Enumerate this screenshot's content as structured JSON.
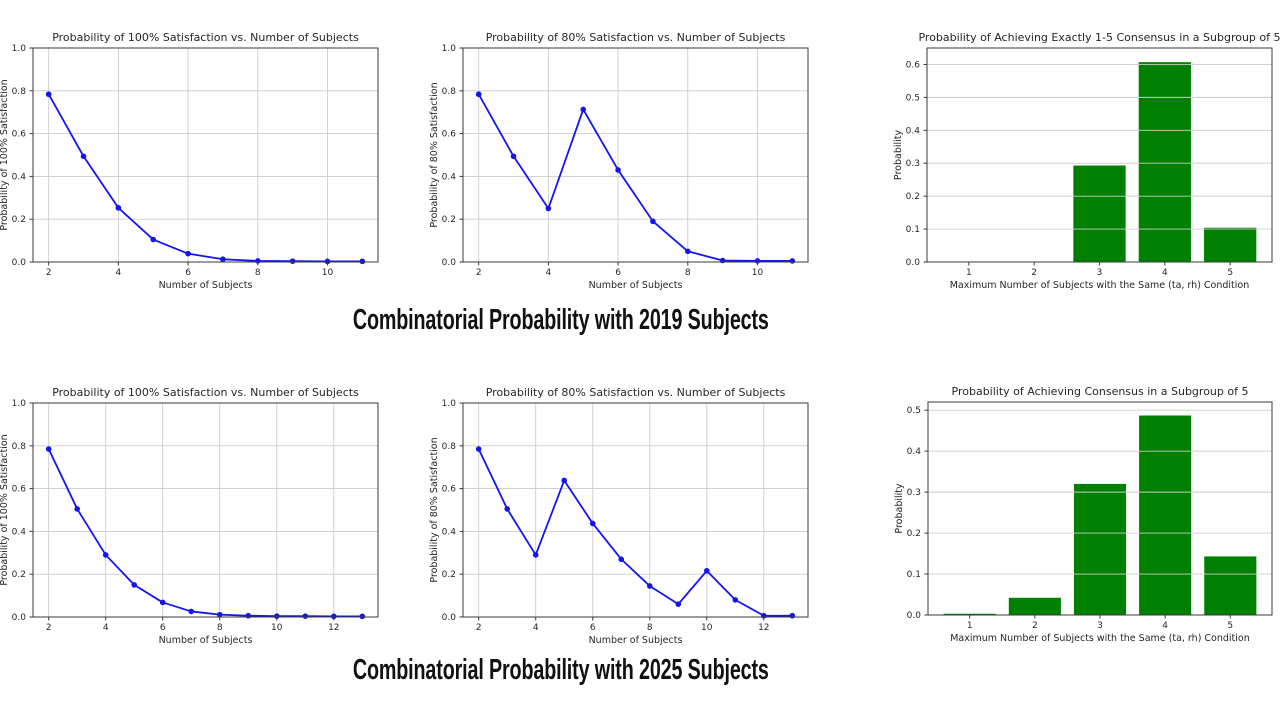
{
  "page": {
    "background": "#ffffff"
  },
  "sections": [
    {
      "heading": "Combinatorial Probability with 2019 Subjects"
    },
    {
      "heading": "Combinatorial Probability with 2025 Subjects"
    }
  ],
  "colors": {
    "line": "#1414f0",
    "bar": "#008000",
    "grid": "#cccccc",
    "axis": "#3a3a3a",
    "text": "#262626",
    "heading": "#111111"
  },
  "chart_data": [
    {
      "id": "satisfaction-100-2019",
      "type": "line",
      "title": "Probability of 100% Satisfaction vs. Number of Subjects",
      "xlabel": "Number of Subjects",
      "ylabel": "Probability of 100% Satisfaction",
      "x": [
        2,
        3,
        4,
        5,
        6,
        7,
        8,
        9,
        10,
        11
      ],
      "y": [
        0.784,
        0.494,
        0.253,
        0.105,
        0.039,
        0.013,
        0.005,
        0.004,
        0.003,
        0.003
      ],
      "xlim": [
        1.55,
        11.45
      ],
      "ylim": [
        0,
        1.0
      ],
      "xticks": [
        2,
        4,
        6,
        8,
        10
      ],
      "yticks": [
        0.0,
        0.2,
        0.4,
        0.6,
        0.8,
        1.0
      ],
      "grid": "both",
      "legend": "none"
    },
    {
      "id": "satisfaction-80-2019",
      "type": "line",
      "title": "Probability of 80% Satisfaction vs. Number of Subjects",
      "xlabel": "Number of Subjects",
      "ylabel": "Probability of 80% Satisfaction",
      "x": [
        2,
        3,
        4,
        5,
        6,
        7,
        8,
        9,
        10,
        11
      ],
      "y": [
        0.784,
        0.494,
        0.25,
        0.713,
        0.43,
        0.19,
        0.05,
        0.007,
        0.005,
        0.005
      ],
      "xlim": [
        1.55,
        11.45
      ],
      "ylim": [
        0,
        1.0
      ],
      "xticks": [
        2,
        4,
        6,
        8,
        10
      ],
      "yticks": [
        0.0,
        0.2,
        0.4,
        0.6,
        0.8,
        1.0
      ],
      "grid": "both",
      "legend": "none"
    },
    {
      "id": "consensus-2019",
      "type": "bar",
      "title": "Probability of Achieving Exactly 1-5 Consensus in a Subgroup of 5",
      "xlabel": "Maximum Number of Subjects with the Same (ta, rh) Condition",
      "ylabel": "Probability",
      "categories": [
        1,
        2,
        3,
        4,
        5
      ],
      "values": [
        0.001,
        0.001,
        0.293,
        0.607,
        0.104
      ],
      "xlim": [
        0.36,
        5.64
      ],
      "ylim": [
        0,
        0.65
      ],
      "yticks": [
        0.0,
        0.1,
        0.2,
        0.3,
        0.4,
        0.5,
        0.6
      ],
      "bar_width": 0.8,
      "grid": "y",
      "legend": "none"
    },
    {
      "id": "satisfaction-100-2025",
      "type": "line",
      "title": "Probability of 100% Satisfaction vs. Number of Subjects",
      "xlabel": "Number of Subjects",
      "ylabel": "Probability of 100% Satisfaction",
      "x": [
        2,
        3,
        4,
        5,
        6,
        7,
        8,
        9,
        10,
        11,
        12,
        13
      ],
      "y": [
        0.785,
        0.505,
        0.29,
        0.15,
        0.068,
        0.026,
        0.011,
        0.006,
        0.004,
        0.004,
        0.003,
        0.003
      ],
      "xlim": [
        1.45,
        13.55
      ],
      "ylim": [
        0,
        1.0
      ],
      "xticks": [
        2,
        4,
        6,
        8,
        10,
        12
      ],
      "yticks": [
        0.0,
        0.2,
        0.4,
        0.6,
        0.8,
        1.0
      ],
      "grid": "both",
      "legend": "none"
    },
    {
      "id": "satisfaction-80-2025",
      "type": "line",
      "title": "Probability of 80% Satisfaction vs. Number of Subjects",
      "xlabel": "Number of Subjects",
      "ylabel": "Probability of 80% Satisfaction",
      "x": [
        2,
        3,
        4,
        5,
        6,
        7,
        8,
        9,
        10,
        11,
        12,
        13
      ],
      "y": [
        0.785,
        0.505,
        0.29,
        0.638,
        0.437,
        0.27,
        0.145,
        0.06,
        0.216,
        0.08,
        0.006,
        0.006
      ],
      "xlim": [
        1.45,
        13.55
      ],
      "ylim": [
        0,
        1.0
      ],
      "xticks": [
        2,
        4,
        6,
        8,
        10,
        12
      ],
      "yticks": [
        0.0,
        0.2,
        0.4,
        0.6,
        0.8,
        1.0
      ],
      "grid": "both",
      "legend": "none"
    },
    {
      "id": "consensus-2025",
      "type": "bar",
      "title": "Probability of Achieving Consensus in a Subgroup of 5",
      "xlabel": "Maximum Number of Subjects with the Same (ta, rh) Condition",
      "ylabel": "Probability",
      "categories": [
        1,
        2,
        3,
        4,
        5
      ],
      "values": [
        0.003,
        0.042,
        0.32,
        0.487,
        0.143
      ],
      "xlim": [
        0.36,
        5.64
      ],
      "ylim": [
        0,
        0.52
      ],
      "yticks": [
        0.0,
        0.1,
        0.2,
        0.3,
        0.4,
        0.5
      ],
      "bar_width": 0.8,
      "grid": "y",
      "legend": "none"
    }
  ]
}
